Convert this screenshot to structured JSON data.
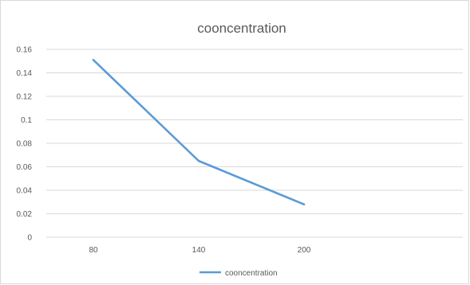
{
  "chart_data": {
    "type": "line",
    "title": "cooncentration",
    "xlabel": "",
    "ylabel": "",
    "categories": [
      "80",
      "140",
      "200"
    ],
    "series": [
      {
        "name": "cooncentration",
        "values": [
          0.151,
          0.065,
          0.028
        ],
        "color": "#5b9bd5"
      }
    ],
    "ylim": [
      0,
      0.16
    ],
    "y_ticks": [
      "0",
      "0.02",
      "0.04",
      "0.06",
      "0.08",
      "0.1",
      "0.12",
      "0.14",
      "0.16"
    ],
    "grid": true,
    "legend_position": "bottom"
  }
}
